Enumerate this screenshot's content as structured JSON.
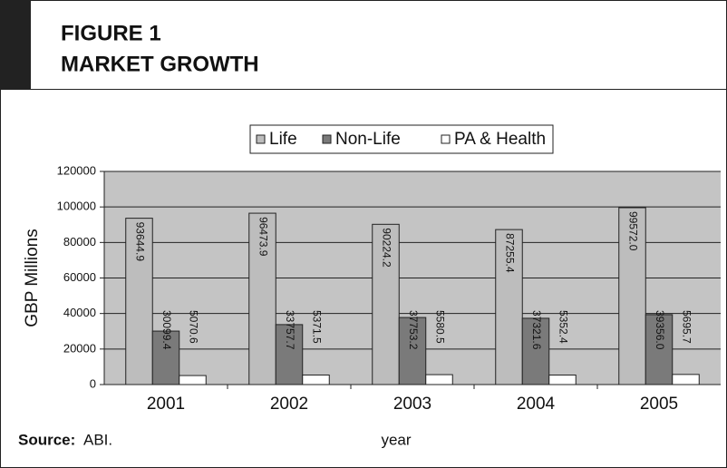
{
  "header": {
    "figure": "FIGURE 1",
    "title": "MARKET GROWTH"
  },
  "source": {
    "label": "Source:",
    "text": "ABI."
  },
  "chart_data": {
    "type": "bar",
    "categories": [
      "2001",
      "2002",
      "2003",
      "2004",
      "2005"
    ],
    "series": [
      {
        "name": "Life",
        "color": "#bdbdbd",
        "values": [
          93644.9,
          96473.9,
          90224.2,
          87255.4,
          99572.0
        ],
        "value_labels": [
          "93644.9",
          "96473.9",
          "90224.2",
          "87255.4",
          "99572.0"
        ]
      },
      {
        "name": "Non-Life",
        "color": "#7a7a7a",
        "values": [
          30099.4,
          33757.7,
          37753.2,
          37321.6,
          39356.0
        ],
        "value_labels": [
          "30099.4",
          "33757.7",
          "37753.2",
          "37321.6",
          "39356.0"
        ]
      },
      {
        "name": "PA & Health",
        "color": "#ffffff",
        "values": [
          5070.6,
          5371.5,
          5580.5,
          5352.4,
          5695.7
        ],
        "value_labels": [
          "5070.6",
          "5371.5",
          "5580.5",
          "5352.4",
          "5695.7"
        ]
      }
    ],
    "ylabel": "GBP Millions",
    "xlabel": "year",
    "ylim": [
      0,
      120000
    ],
    "yticks": [
      0,
      20000,
      40000,
      60000,
      80000,
      100000,
      120000
    ],
    "grid": true,
    "legend": "top"
  }
}
